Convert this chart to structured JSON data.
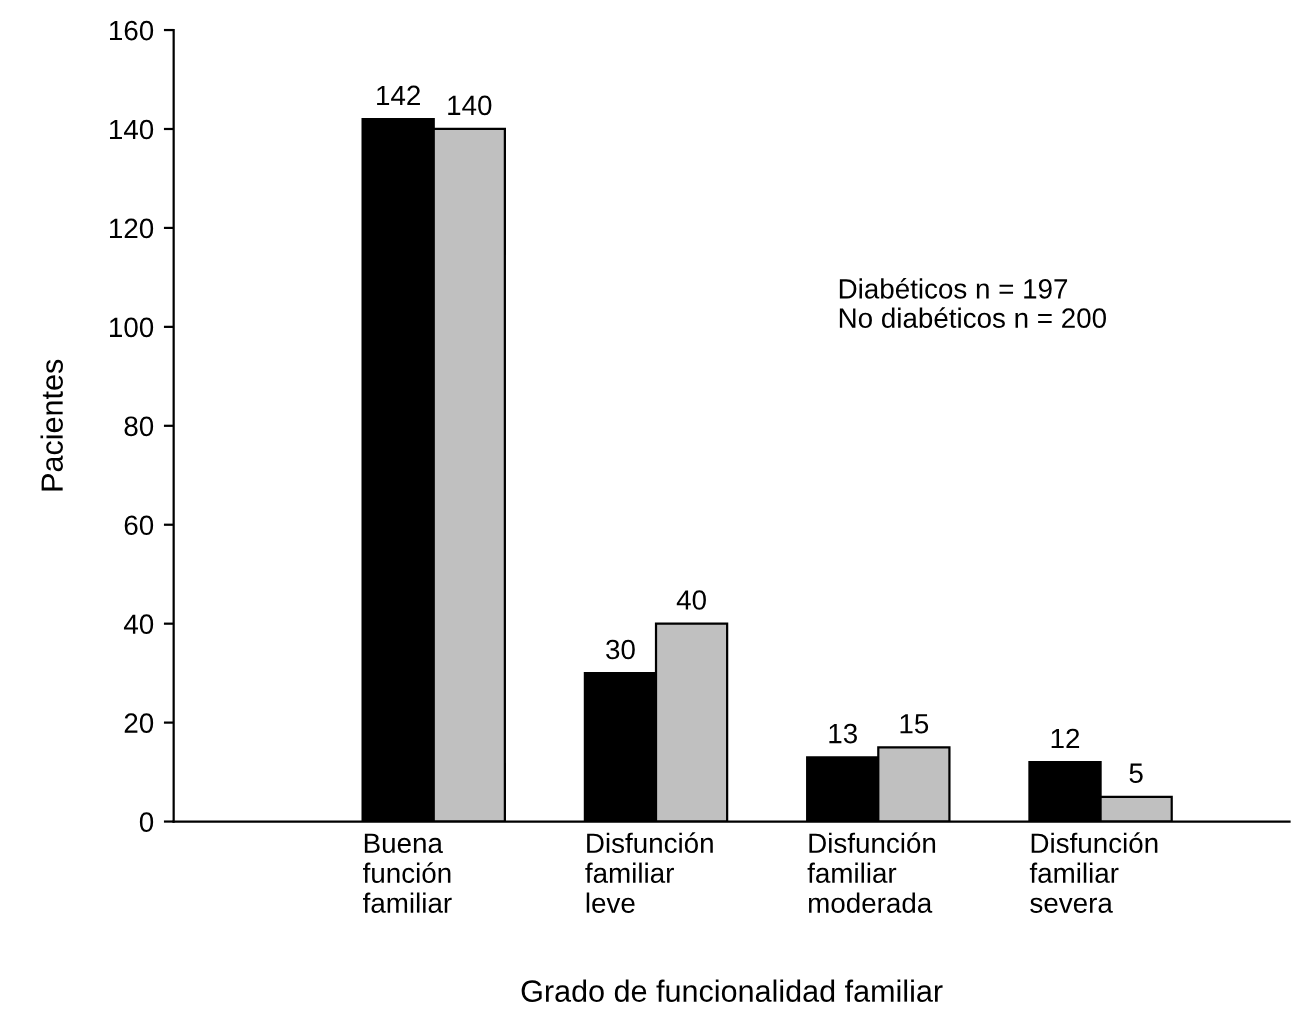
{
  "chart_data": {
    "type": "bar",
    "xlabel": "Grado de funcionalidad familiar",
    "ylabel": "Pacientes",
    "categories": [
      "Buena\nfunción\nfamiliar",
      "Disfunción\nfamiliar\nleve",
      "Disfunción\nfamiliar\nmoderada",
      "Disfunción\nfamiliar\nsevera"
    ],
    "series": [
      {
        "color": "#000000",
        "values": [
          142,
          30,
          13,
          12
        ]
      },
      {
        "color": "#c0c0c0",
        "values": [
          140,
          40,
          15,
          5
        ]
      }
    ],
    "ylim": [
      0,
      160
    ],
    "yticks": [
      0,
      20,
      40,
      60,
      80,
      100,
      120,
      140,
      160
    ],
    "grid": false,
    "legend": false,
    "data_labels": true,
    "annotations": [
      "Diabéticos n = 197",
      "No diabéticos n = 200"
    ]
  }
}
